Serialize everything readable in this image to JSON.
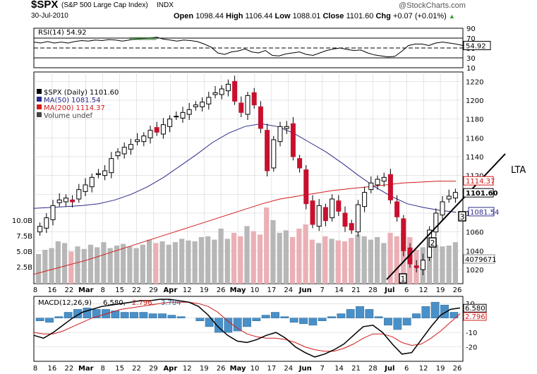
{
  "header": {
    "symbol": "$SPX",
    "name": "(S&P 500 Large Cap Index)",
    "exchange": "INDX",
    "date": "30-Jul-2010",
    "open_label": "Open",
    "open": "1098.44",
    "high_label": "High",
    "high": "1106.44",
    "low_label": "Low",
    "low": "1088.01",
    "close_label": "Close",
    "close": "1101.60",
    "chg_label": "Chg",
    "chg": "+0.07 (+0.01%)",
    "watermark": "@StockCharts.com"
  },
  "chart_data": [
    {
      "type": "line",
      "panel": "RSI",
      "title": "RSI(14) 54.92",
      "ylim": [
        10,
        90
      ],
      "yticks": [
        90,
        70,
        50,
        30,
        10
      ],
      "reference_lines": [
        70,
        50,
        30
      ],
      "last_value_label": "54.92",
      "series": [
        {
          "values": [
            62,
            60,
            63,
            60,
            62,
            60,
            63,
            65,
            64,
            66,
            65,
            67,
            66,
            64,
            66,
            68,
            69,
            70,
            72,
            68,
            66,
            64,
            66,
            65,
            63,
            58,
            52,
            40,
            37,
            42,
            44,
            48,
            42,
            40,
            45,
            35,
            34,
            38,
            40,
            42,
            37,
            35,
            40,
            45,
            48,
            50,
            47,
            45,
            46,
            40,
            36,
            34,
            32,
            33,
            43,
            55,
            58,
            58,
            55,
            60,
            62,
            60,
            58,
            55
          ]
        }
      ]
    },
    {
      "type": "candlestick",
      "panel": "price",
      "legend": [
        "$SPX (Daily) 1101.60",
        "MA(50) 1081.54",
        "MA(200) 1114.37",
        "Volume undef"
      ],
      "ylim": [
        1005,
        1230
      ],
      "yticks": [
        1220,
        1200,
        1180,
        1160,
        1140,
        1120,
        1100,
        1080,
        1060,
        1040,
        1020
      ],
      "volume_ticks": [
        "10.0B",
        "7.5B",
        "5.0B",
        "2.5B"
      ],
      "xticks": [
        "8",
        "16",
        "22",
        "Mar",
        "8",
        "15",
        "22",
        "29",
        "Apr",
        "12",
        "19",
        "26",
        "May",
        "10",
        "17",
        "24",
        "Jun",
        "7",
        "14",
        "21",
        "28",
        "Jul",
        "6",
        "12",
        "19",
        "26"
      ],
      "closes": [
        1066,
        1075,
        1088,
        1094,
        1096,
        1092,
        1105,
        1110,
        1118,
        1122,
        1125,
        1138,
        1145,
        1150,
        1153,
        1158,
        1162,
        1168,
        1166,
        1174,
        1180,
        1183,
        1187,
        1190,
        1195,
        1198,
        1203,
        1208,
        1212,
        1217,
        1199,
        1187,
        1205,
        1195,
        1170,
        1125,
        1158,
        1172,
        1172,
        1140,
        1128,
        1090,
        1068,
        1088,
        1072,
        1095,
        1082,
        1066,
        1062,
        1089,
        1102,
        1112,
        1116,
        1118,
        1094,
        1076,
        1040,
        1026,
        1022,
        1030,
        1062,
        1080,
        1092,
        1098,
        1102
      ],
      "ma50": [
        1085,
        1086,
        1087,
        1088,
        1090,
        1094,
        1100,
        1108,
        1118,
        1130,
        1142,
        1155,
        1165,
        1172,
        1175,
        1172,
        1165,
        1155,
        1145,
        1133,
        1120,
        1108,
        1098,
        1090,
        1086,
        1083,
        1081
      ],
      "ma200": [
        1015,
        1020,
        1025,
        1030,
        1036,
        1042,
        1048,
        1054,
        1060,
        1066,
        1072,
        1078,
        1084,
        1090,
        1095,
        1098,
        1101,
        1104,
        1106,
        1108,
        1110,
        1112,
        1113,
        1114,
        1114
      ],
      "ma50_label": "1081.54",
      "ma200_label": "1114.37",
      "close_label": "1101.60",
      "volume_label": "4079671",
      "volume": [
        3.5,
        4,
        4.2,
        5,
        4.8,
        3.8,
        4.4,
        4.1,
        4.6,
        4.3,
        4.9,
        4.2,
        4.5,
        4.7,
        4.4,
        4.2,
        4.6,
        5.2,
        4.8,
        5,
        4.6,
        4.9,
        5.3,
        5.1,
        5,
        5.5,
        5.6,
        5.2,
        6.5,
        5.3,
        6,
        5.6,
        6.8,
        6.2,
        5.8,
        9,
        7.5,
        6,
        6.3,
        5.5,
        6.5,
        7,
        5.2,
        4.8,
        5.6,
        5.3,
        5.1,
        5,
        5.4,
        5.8,
        5.6,
        5.2,
        5.5,
        4.8,
        6,
        5.6,
        6,
        5.5,
        4,
        4.3,
        4.8,
        4.6,
        4.4,
        4.5,
        4.9
      ],
      "trendline_label": "LTA",
      "markers": [
        "1",
        "2",
        "3"
      ]
    },
    {
      "type": "line",
      "panel": "MACD",
      "title": "MACD(12,26,9) 6.580, 2.796, 3.784",
      "title_prefix": "MACD(12,26,9)",
      "title_values": [
        "6.580",
        "2.796",
        "3.784"
      ],
      "ylim": [
        -30,
        15
      ],
      "yticks": [
        10,
        0,
        -10,
        -20
      ],
      "value_labels": [
        "6.580",
        "2.796"
      ],
      "series": [
        {
          "name": "MACD",
          "values": [
            -12,
            -14,
            -10,
            -5,
            0,
            4,
            6,
            8,
            9,
            10,
            11,
            12,
            12,
            13,
            13,
            12,
            11,
            8,
            2,
            -6,
            -12,
            -16,
            -17,
            -15,
            -12,
            -10,
            -14,
            -20,
            -24,
            -27,
            -25,
            -22,
            -18,
            -12,
            -6,
            -5,
            -10,
            -18,
            -25,
            -24,
            -15,
            -6,
            2,
            6,
            7
          ]
        },
        {
          "name": "Signal",
          "values": [
            -10,
            -11,
            -11,
            -9,
            -6,
            -3,
            0,
            2,
            4,
            6,
            7,
            8,
            9,
            10,
            11,
            11,
            11,
            10,
            8,
            4,
            -2,
            -7,
            -11,
            -13,
            -14,
            -14,
            -15,
            -17,
            -20,
            -22,
            -23,
            -23,
            -21,
            -18,
            -14,
            -11,
            -11,
            -13,
            -17,
            -19,
            -18,
            -14,
            -9,
            -3,
            3
          ]
        }
      ],
      "histogram": [
        -2,
        -3,
        1,
        4,
        6,
        7,
        6,
        6,
        5,
        4,
        4,
        4,
        3,
        3,
        2,
        1,
        0,
        -2,
        -6,
        -10,
        -10,
        -9,
        -6,
        -2,
        2,
        4,
        1,
        -3,
        -4,
        -5,
        -2,
        1,
        3,
        6,
        8,
        6,
        1,
        -5,
        -8,
        -5,
        3,
        8,
        11,
        9,
        4
      ]
    }
  ]
}
